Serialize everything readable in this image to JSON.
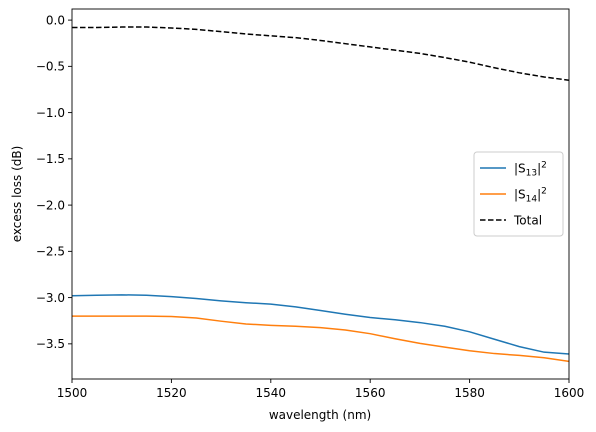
{
  "chart_data": {
    "type": "line",
    "xlabel": "wavelength (nm)",
    "ylabel": "excess loss (dB)",
    "xlim": [
      1500,
      1600
    ],
    "ylim": [
      -3.88,
      0.12
    ],
    "x_ticks": [
      1500,
      1520,
      1540,
      1560,
      1580,
      1600
    ],
    "y_ticks": [
      0.0,
      -0.5,
      -1.0,
      -1.5,
      -2.0,
      -2.5,
      -3.0,
      -3.5
    ],
    "x_tick_labels": [
      "1500",
      "1520",
      "1540",
      "1560",
      "1580",
      "1600"
    ],
    "y_tick_labels": [
      "0.0",
      "−0.5",
      "−1.0",
      "−1.5",
      "−2.0",
      "−2.5",
      "−3.0",
      "−3.5"
    ],
    "grid": false,
    "legend_position": "center-right",
    "x": [
      1500,
      1505,
      1510,
      1515,
      1520,
      1525,
      1530,
      1535,
      1540,
      1545,
      1550,
      1555,
      1560,
      1565,
      1570,
      1575,
      1580,
      1585,
      1590,
      1595,
      1600
    ],
    "series": [
      {
        "name": "|S13|^2",
        "legend_base": "|S",
        "legend_sub": "13",
        "legend_close": "|",
        "legend_sup": "2",
        "color": "#1f77b4",
        "dash": "solid",
        "values": [
          -2.98,
          -2.975,
          -2.97,
          -2.975,
          -2.99,
          -3.01,
          -3.035,
          -3.055,
          -3.07,
          -3.1,
          -3.14,
          -3.18,
          -3.215,
          -3.24,
          -3.27,
          -3.31,
          -3.37,
          -3.45,
          -3.53,
          -3.59,
          -3.61
        ]
      },
      {
        "name": "|S14|^2",
        "legend_base": "|S",
        "legend_sub": "14",
        "legend_close": "|",
        "legend_sup": "2",
        "color": "#ff7f0e",
        "dash": "solid",
        "values": [
          -3.2,
          -3.2,
          -3.2,
          -3.2,
          -3.205,
          -3.22,
          -3.255,
          -3.285,
          -3.3,
          -3.31,
          -3.325,
          -3.35,
          -3.39,
          -3.445,
          -3.495,
          -3.535,
          -3.575,
          -3.605,
          -3.625,
          -3.65,
          -3.69
        ]
      },
      {
        "name": "Total",
        "legend_base": "Total",
        "color": "#000000",
        "dash": "dashed",
        "values": [
          -0.08,
          -0.08,
          -0.075,
          -0.075,
          -0.085,
          -0.1,
          -0.125,
          -0.15,
          -0.17,
          -0.19,
          -0.22,
          -0.255,
          -0.29,
          -0.325,
          -0.36,
          -0.405,
          -0.455,
          -0.515,
          -0.57,
          -0.615,
          -0.65
        ]
      }
    ]
  }
}
